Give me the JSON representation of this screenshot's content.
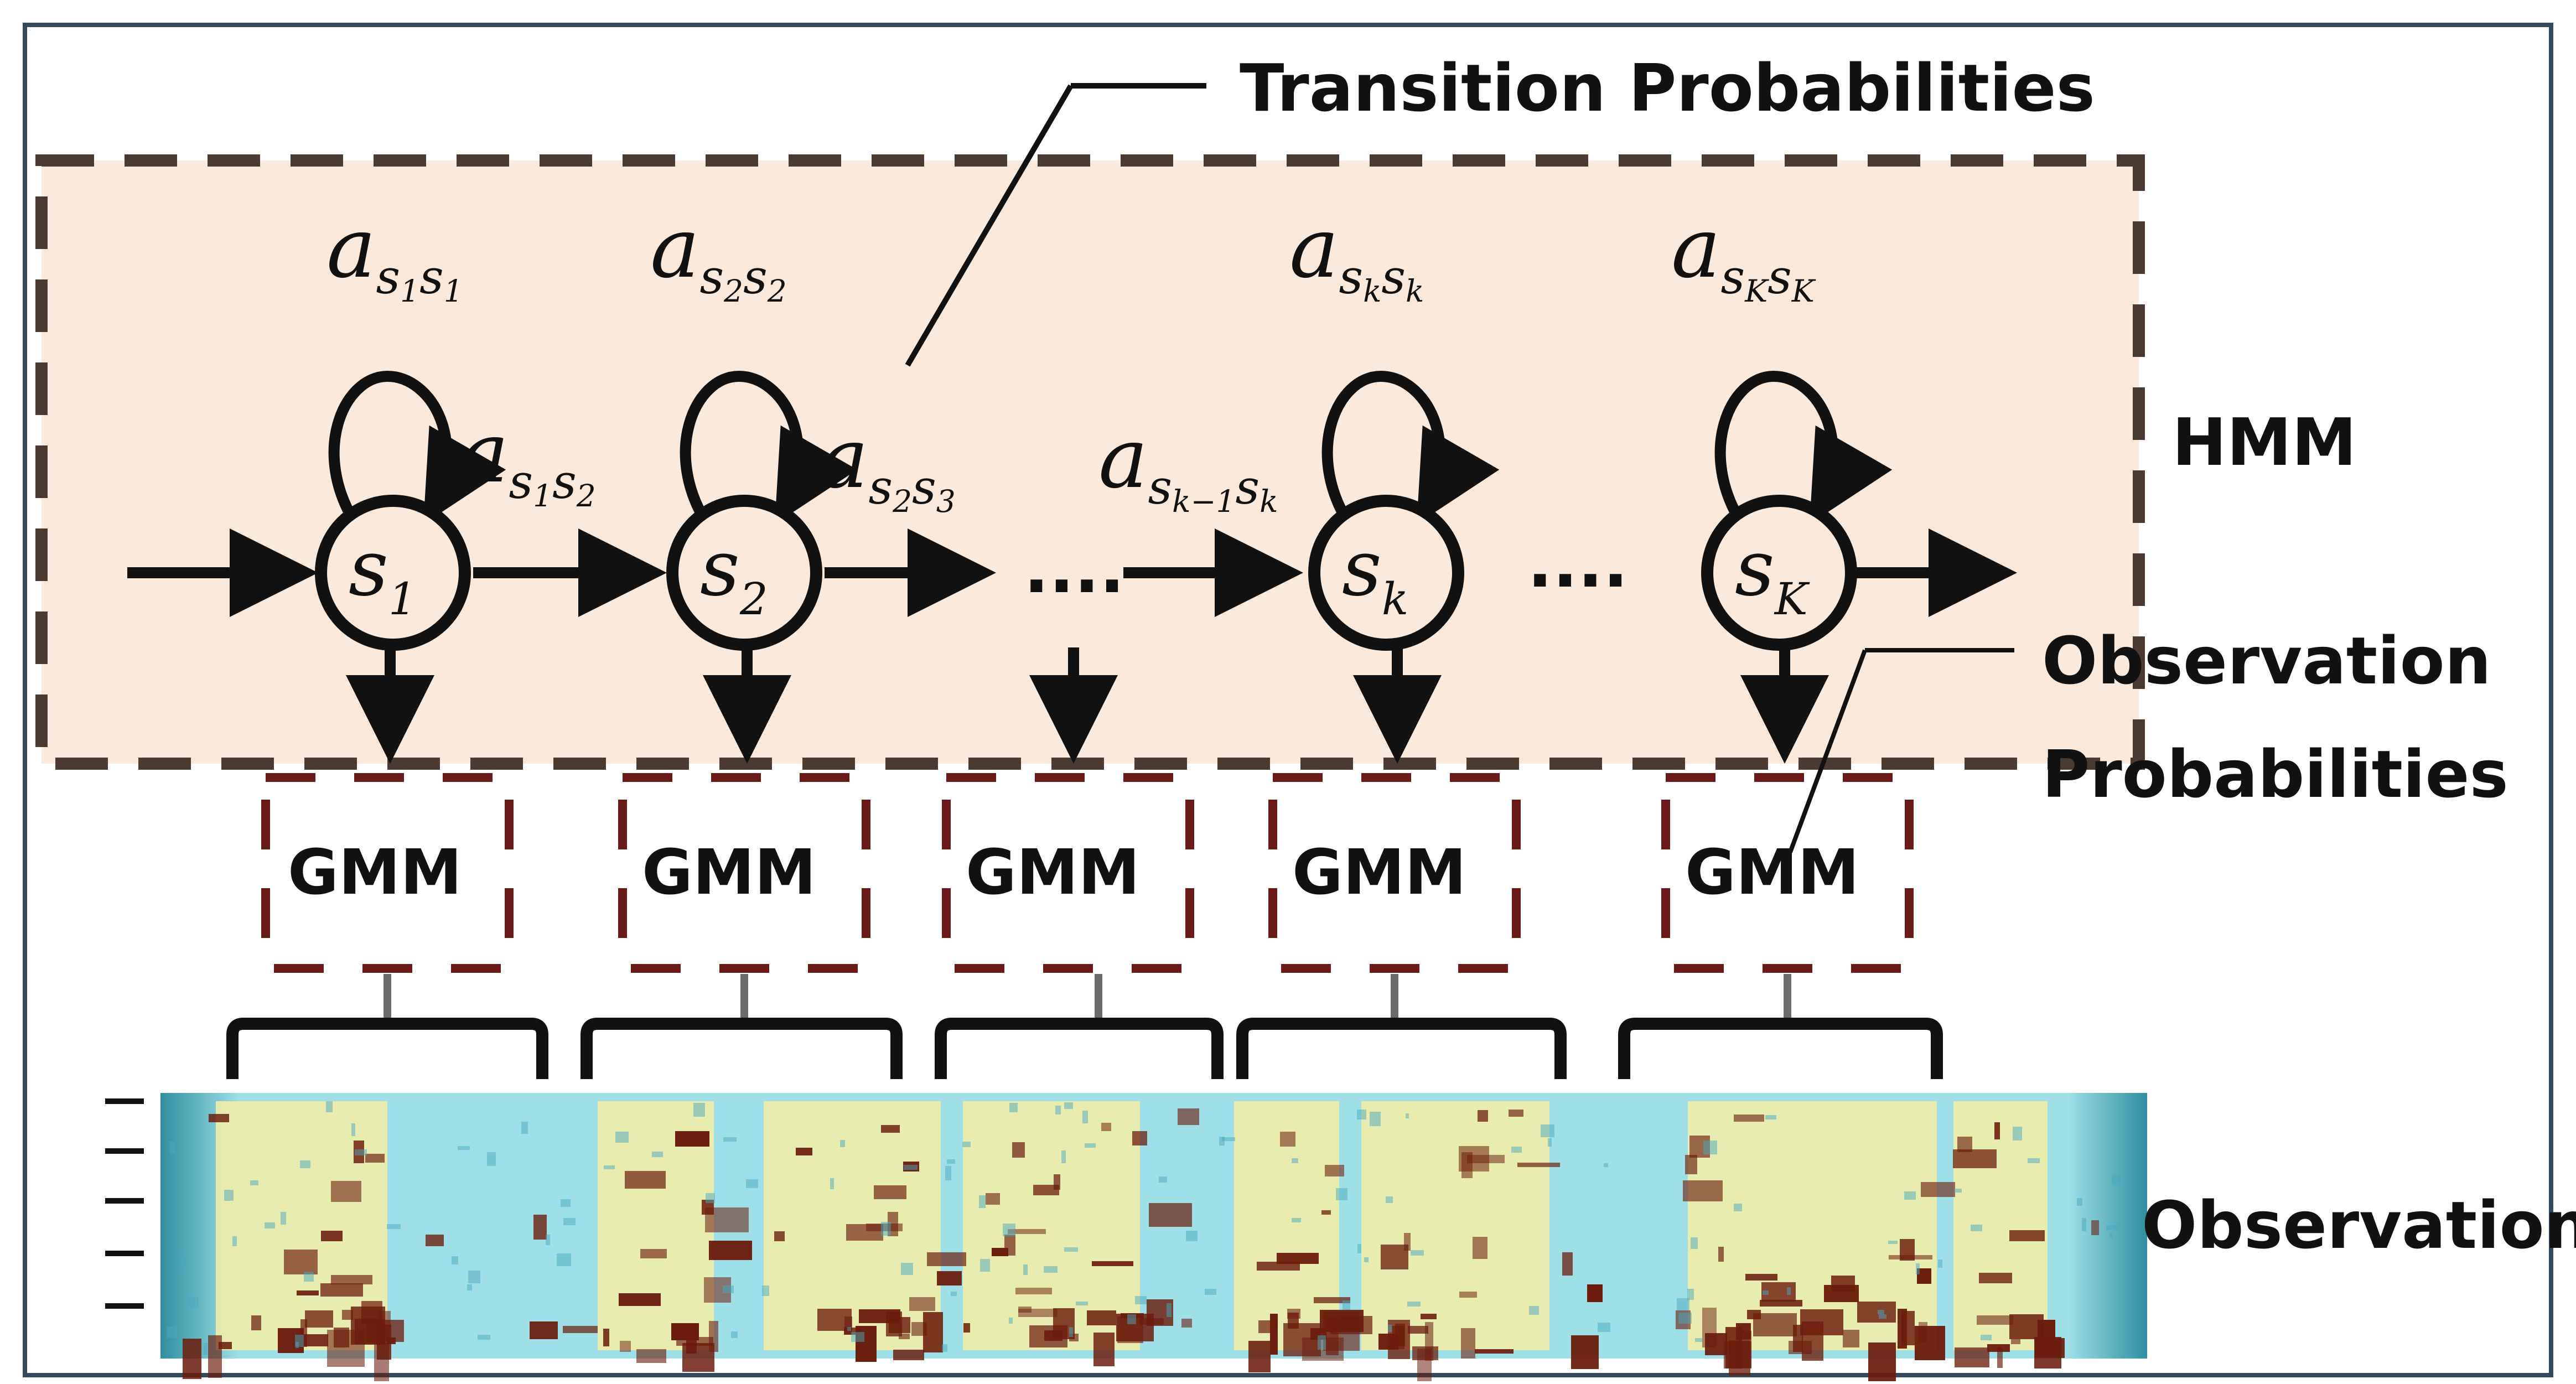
{
  "labels": {
    "transition": "Transition Probabilities",
    "hmm": "HMM",
    "observation_probs_line1": "Observation",
    "observation_probs_line2": "Probabilities",
    "observation": "Observation",
    "dots_mid": "....",
    "dots_right": "...."
  },
  "states": [
    {
      "base": "s",
      "sub": "1"
    },
    {
      "base": "s",
      "sub": "2"
    },
    {
      "base": "s",
      "sub": "k"
    },
    {
      "base": "s",
      "sub": "K"
    }
  ],
  "self_transitions": [
    {
      "base": "a",
      "sub1": "s",
      "subsub1": "1",
      "sub2": "s",
      "subsub2": "1"
    },
    {
      "base": "a",
      "sub1": "s",
      "subsub1": "2",
      "sub2": "s",
      "subsub2": "2"
    },
    {
      "base": "a",
      "sub1": "s",
      "subsub1": "k",
      "sub2": "s",
      "subsub2": "k"
    },
    {
      "base": "a",
      "sub1": "s",
      "subsub1": "K",
      "sub2": "s",
      "subsub2": "K"
    }
  ],
  "forward_transitions": [
    {
      "base": "a",
      "sub1": "s",
      "subsub1": "1",
      "sub2": "s",
      "subsub2": "2"
    },
    {
      "base": "a",
      "sub1": "s",
      "subsub1": "2",
      "sub2": "s",
      "subsub2": "3"
    },
    {
      "base": "a",
      "sub1": "s",
      "subsub1": "k−1",
      "sub2": "s",
      "subsub2": "k"
    }
  ],
  "gmm_boxes": [
    "GMM",
    "GMM",
    "GMM",
    "GMM",
    "GMM"
  ],
  "colors": {
    "hmm_fill": "#fbe9dc",
    "dashed_border": "#4a3a32",
    "gmm_dash": "#6b1a1a",
    "ink": "#111111",
    "spectro_bg": "#9fe0e8",
    "spectro_yellow": "#f1eda8",
    "spectro_dark": "#6b1c0c"
  }
}
